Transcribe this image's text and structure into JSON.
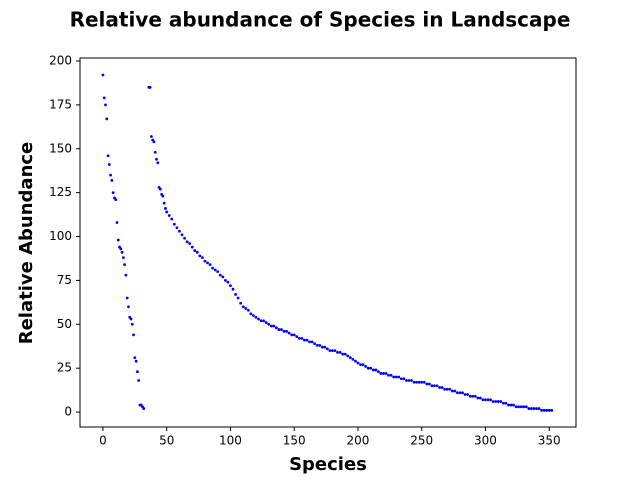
{
  "chart_data": {
    "type": "scatter",
    "title": "Relative abundance of Species in Landscape",
    "xlabel": "Species",
    "ylabel": "Relative Abundance",
    "color": "#0000ff",
    "x": [
      0,
      1,
      2,
      3,
      4,
      5,
      6,
      7,
      8,
      9,
      10,
      11,
      12,
      13,
      14,
      15,
      16,
      17,
      18,
      19,
      20,
      21,
      22,
      23,
      24,
      25,
      26,
      27,
      28,
      29,
      30,
      31,
      32,
      36,
      37,
      38,
      39,
      40,
      41,
      42,
      43,
      44,
      45,
      46,
      47,
      48,
      49,
      50,
      52,
      54,
      56,
      58,
      60,
      62,
      64,
      66,
      68,
      70,
      72,
      74,
      76,
      78,
      80,
      82,
      84,
      86,
      88,
      90,
      92,
      94,
      96,
      98,
      100,
      102,
      104,
      106,
      108,
      110,
      112,
      114,
      116,
      118,
      120,
      122,
      124,
      126,
      128,
      130,
      132,
      134,
      136,
      138,
      140,
      142,
      144,
      146,
      148,
      150,
      152,
      154,
      156,
      158,
      160,
      162,
      164,
      166,
      168,
      170,
      172,
      174,
      176,
      178,
      180,
      182,
      184,
      186,
      188,
      190,
      192,
      194,
      196,
      198,
      200,
      202,
      204,
      206,
      208,
      210,
      212,
      214,
      216,
      218,
      220,
      222,
      224,
      226,
      228,
      230,
      232,
      234,
      236,
      238,
      240,
      242,
      244,
      246,
      248,
      250,
      252,
      254,
      256,
      258,
      260,
      262,
      264,
      266,
      268,
      270,
      272,
      274,
      276,
      278,
      280,
      282,
      284,
      286,
      288,
      290,
      292,
      294,
      296,
      298,
      300,
      302,
      304,
      306,
      308,
      310,
      312,
      314,
      316,
      318,
      320,
      322,
      324,
      326,
      328,
      330,
      332,
      334,
      336,
      338,
      340,
      342,
      344,
      346,
      348,
      350,
      352
    ],
    "y": [
      192,
      179,
      175,
      167,
      146,
      141,
      135,
      132,
      125,
      122,
      121,
      108,
      98,
      94,
      93,
      91,
      88,
      84,
      78,
      65,
      60,
      54,
      53,
      50,
      44,
      31,
      29,
      23,
      18,
      4,
      4,
      3,
      2,
      185,
      185,
      157,
      155,
      154,
      148,
      144,
      142,
      128,
      127,
      124,
      123,
      119,
      116,
      114,
      112,
      110,
      107,
      105,
      103,
      101,
      99,
      97,
      96,
      94,
      92,
      91,
      89,
      88,
      86,
      85,
      84,
      82,
      81,
      80,
      78,
      77,
      75,
      74,
      72,
      70,
      67,
      65,
      62,
      60,
      59,
      58,
      56,
      55,
      54,
      53,
      52,
      52,
      51,
      50,
      49,
      49,
      48,
      47,
      47,
      46,
      46,
      45,
      44,
      44,
      43,
      42,
      42,
      41,
      41,
      40,
      40,
      39,
      38,
      38,
      37,
      37,
      36,
      35,
      35,
      35,
      34,
      34,
      33,
      33,
      32,
      31,
      30,
      29,
      28,
      27,
      27,
      26,
      25,
      25,
      24,
      24,
      23,
      22,
      22,
      22,
      21,
      21,
      20,
      20,
      20,
      19,
      19,
      18,
      18,
      18,
      17,
      17,
      17,
      17,
      17,
      16,
      16,
      15,
      15,
      15,
      14,
      14,
      13,
      13,
      13,
      12,
      12,
      11,
      11,
      11,
      10,
      10,
      9,
      9,
      9,
      8,
      8,
      7,
      7,
      7,
      7,
      6,
      6,
      6,
      6,
      5,
      5,
      4,
      4,
      4,
      3,
      3,
      3,
      3,
      3,
      2,
      2,
      2,
      2,
      2,
      1,
      1,
      1,
      1,
      1
    ],
    "xlim": [
      -18,
      371
    ],
    "ylim": [
      -8.5,
      201.7
    ],
    "xticks": [
      0,
      50,
      100,
      150,
      200,
      250,
      300,
      350
    ],
    "yticks": [
      0,
      25,
      50,
      75,
      100,
      125,
      150,
      175,
      200
    ]
  }
}
